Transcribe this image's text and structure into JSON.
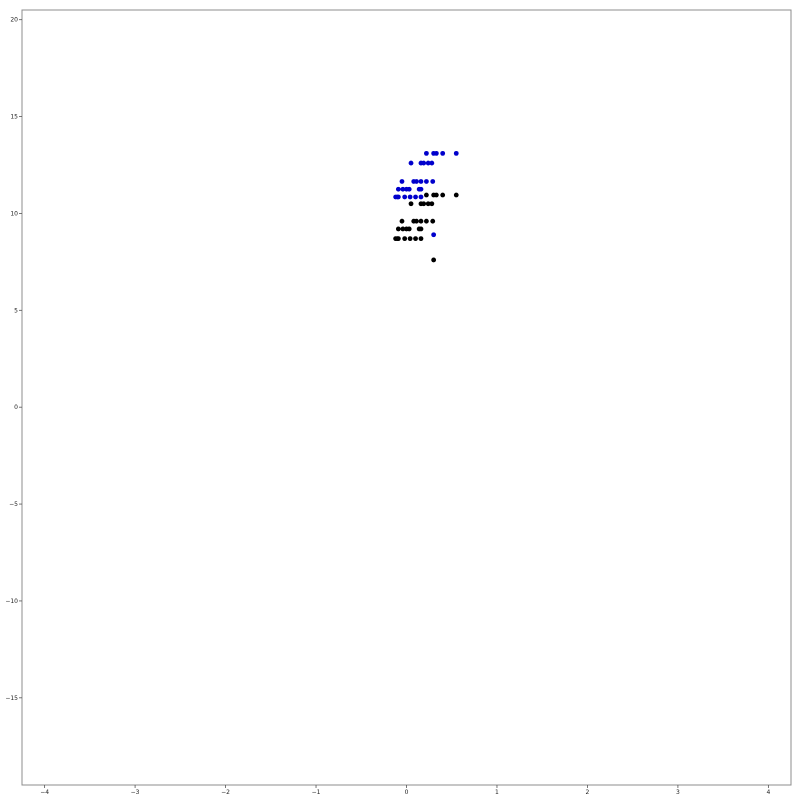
{
  "chart_data": {
    "type": "scatter",
    "title": "",
    "xlabel": "",
    "ylabel": "",
    "xlim": [
      -4.25,
      4.25
    ],
    "ylim": [
      -19.5,
      20.5
    ],
    "xticks": [
      -4,
      -3,
      -2,
      -1,
      0,
      1,
      2,
      3,
      4
    ],
    "xtick_labels": [
      "−4",
      "−3",
      "−2",
      "−1",
      "0",
      "1",
      "2",
      "3",
      "4"
    ],
    "yticks": [
      -15,
      -10,
      -5,
      0,
      5,
      10,
      15,
      20
    ],
    "ytick_labels": [
      "−15",
      "−10",
      "−5",
      "0",
      "5",
      "10",
      "15",
      "20"
    ],
    "grid": false,
    "legend": "none",
    "series": [
      {
        "color": "#0000cc",
        "points": [
          [
            0.22,
            13.1
          ],
          [
            0.3,
            13.1
          ],
          [
            0.33,
            13.1
          ],
          [
            0.4,
            13.1
          ],
          [
            0.55,
            13.1
          ],
          [
            0.05,
            12.6
          ],
          [
            0.16,
            12.6
          ],
          [
            0.19,
            12.6
          ],
          [
            0.24,
            12.6
          ],
          [
            0.28,
            12.6
          ],
          [
            -0.05,
            11.65
          ],
          [
            0.08,
            11.65
          ],
          [
            0.11,
            11.65
          ],
          [
            0.16,
            11.65
          ],
          [
            0.22,
            11.65
          ],
          [
            0.29,
            11.65
          ],
          [
            -0.09,
            11.25
          ],
          [
            -0.04,
            11.25
          ],
          [
            0.0,
            11.25
          ],
          [
            0.03,
            11.25
          ],
          [
            0.14,
            11.25
          ],
          [
            0.16,
            11.25
          ],
          [
            -0.12,
            10.85
          ],
          [
            -0.1,
            10.85
          ],
          [
            -0.09,
            10.85
          ],
          [
            -0.02,
            10.85
          ],
          [
            0.04,
            10.85
          ],
          [
            0.1,
            10.85
          ],
          [
            0.16,
            10.85
          ],
          [
            0.3,
            8.9
          ]
        ]
      },
      {
        "color": "#000000",
        "points": [
          [
            0.22,
            10.95
          ],
          [
            0.3,
            10.95
          ],
          [
            0.33,
            10.95
          ],
          [
            0.4,
            10.95
          ],
          [
            0.55,
            10.95
          ],
          [
            0.05,
            10.5
          ],
          [
            0.16,
            10.5
          ],
          [
            0.19,
            10.5
          ],
          [
            0.24,
            10.5
          ],
          [
            0.28,
            10.5
          ],
          [
            -0.05,
            9.6
          ],
          [
            0.08,
            9.6
          ],
          [
            0.11,
            9.6
          ],
          [
            0.16,
            9.6
          ],
          [
            0.22,
            9.6
          ],
          [
            0.29,
            9.6
          ],
          [
            -0.09,
            9.2
          ],
          [
            -0.04,
            9.2
          ],
          [
            0.0,
            9.2
          ],
          [
            0.03,
            9.2
          ],
          [
            0.14,
            9.2
          ],
          [
            0.16,
            9.2
          ],
          [
            -0.12,
            8.7
          ],
          [
            -0.1,
            8.7
          ],
          [
            -0.09,
            8.7
          ],
          [
            -0.02,
            8.7
          ],
          [
            0.04,
            8.7
          ],
          [
            0.1,
            8.7
          ],
          [
            0.16,
            8.7
          ],
          [
            0.3,
            7.6
          ]
        ]
      }
    ]
  }
}
